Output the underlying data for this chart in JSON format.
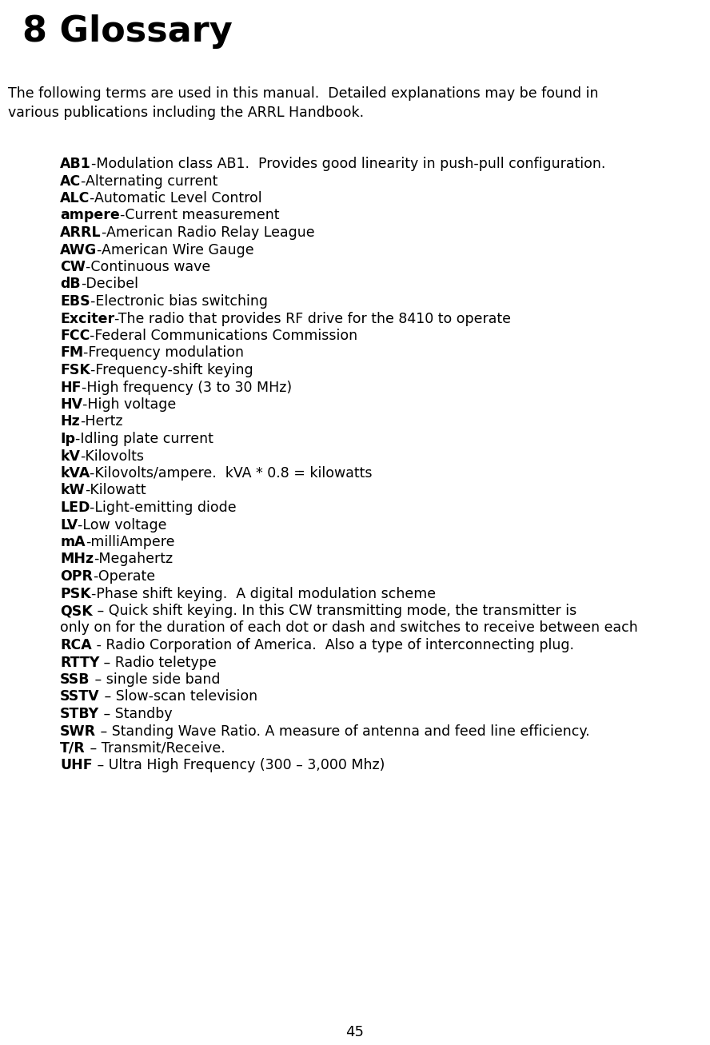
{
  "title": "8 Glossary",
  "title_fontsize": 32,
  "background_color": "#ffffff",
  "text_color": "#000000",
  "intro_fontsize": 12.5,
  "term_fontsize": 12.5,
  "entries": [
    {
      "bold": "AB1",
      "sep": "-",
      "rest": "Modulation class AB1.  Provides good linearity in push-pull configuration."
    },
    {
      "bold": "AC",
      "sep": "-",
      "rest": "Alternating current"
    },
    {
      "bold": "ALC",
      "sep": "-",
      "rest": "Automatic Level Control"
    },
    {
      "bold": "ampere",
      "sep": "-",
      "rest": "Current measurement"
    },
    {
      "bold": "ARRL",
      "sep": "-",
      "rest": "American Radio Relay League"
    },
    {
      "bold": "AWG",
      "sep": "-",
      "rest": "American Wire Gauge"
    },
    {
      "bold": "CW",
      "sep": "-",
      "rest": "Continuous wave"
    },
    {
      "bold": "dB",
      "sep": "-",
      "rest": "Decibel"
    },
    {
      "bold": "EBS",
      "sep": "-",
      "rest": "Electronic bias switching"
    },
    {
      "bold": "Exciter",
      "sep": "-",
      "rest": "The radio that provides RF drive for the 8410 to operate"
    },
    {
      "bold": "FCC",
      "sep": "-",
      "rest": "Federal Communications Commission"
    },
    {
      "bold": "FM",
      "sep": "-",
      "rest": "Frequency modulation"
    },
    {
      "bold": "FSK",
      "sep": "-",
      "rest": "Frequency-shift keying"
    },
    {
      "bold": "HF",
      "sep": "-",
      "rest": "High frequency (3 to 30 MHz)"
    },
    {
      "bold": "HV",
      "sep": "-",
      "rest": "High voltage"
    },
    {
      "bold": "Hz",
      "sep": "-",
      "rest": "Hertz"
    },
    {
      "bold": "Ip",
      "sep": "-",
      "rest": "Idling plate current"
    },
    {
      "bold": "kV",
      "sep": "-",
      "rest": "Kilovolts"
    },
    {
      "bold": "kVA",
      "sep": "-",
      "rest": "Kilovolts/ampere.  kVA * 0.8 = kilowatts"
    },
    {
      "bold": "kW",
      "sep": "-",
      "rest": "Kilowatt"
    },
    {
      "bold": "LED",
      "sep": "-",
      "rest": "Light-emitting diode"
    },
    {
      "bold": "LV",
      "sep": "-",
      "rest": "Low voltage"
    },
    {
      "bold": "mA",
      "sep": "-",
      "rest": "milliAmpere"
    },
    {
      "bold": "MHz",
      "sep": "-",
      "rest": "Megahertz"
    },
    {
      "bold": "OPR",
      "sep": "-",
      "rest": "Operate"
    },
    {
      "bold": "PSK",
      "sep": "-",
      "rest": "Phase shift keying.  A digital modulation scheme"
    },
    {
      "bold": "QSK",
      "sep": " – ",
      "rest": "Quick shift keying. In this CW transmitting mode, the transmitter is\nonly on for the duration of each dot or dash and switches to receive between each"
    },
    {
      "bold": "RCA",
      "sep": " - ",
      "rest": "Radio Corporation of America.  Also a type of interconnecting plug."
    },
    {
      "bold": "RTTY",
      "sep": " – ",
      "rest": "Radio teletype"
    },
    {
      "bold": "SSB",
      "sep": " – ",
      "rest": "single side band"
    },
    {
      "bold": "SSTV",
      "sep": " – ",
      "rest": "Slow-scan television"
    },
    {
      "bold": "STBY",
      "sep": " – ",
      "rest": "Standby"
    },
    {
      "bold": "SWR",
      "sep": " – ",
      "rest": "Standing Wave Ratio. A measure of antenna and feed line efficiency."
    },
    {
      "bold": "T/R",
      "sep": " – ",
      "rest": "Transmit/Receive."
    },
    {
      "bold": "UHF",
      "sep": " – ",
      "rest": "Ultra High Frequency (300 – 3,000 Mhz)"
    }
  ]
}
